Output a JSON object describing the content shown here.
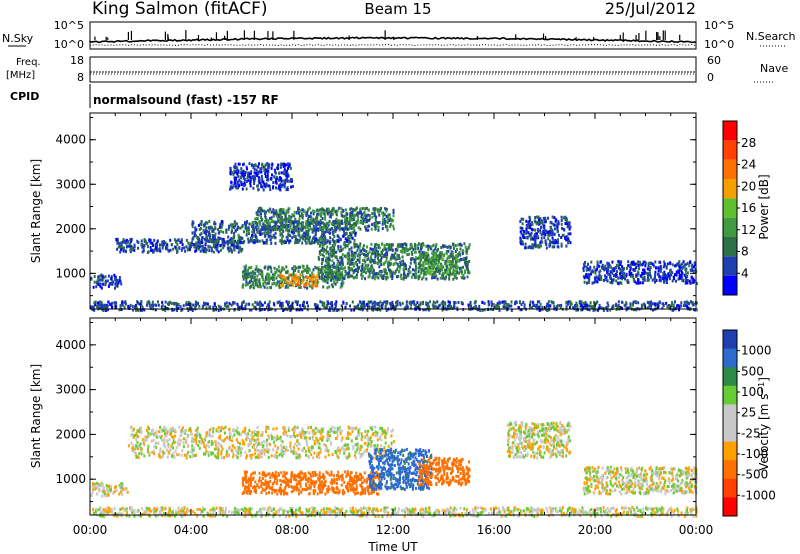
{
  "header": {
    "station": "King Salmon (fitACF)",
    "beam": "Beam 15",
    "date": "25/Jul/2012"
  },
  "status_panel": {
    "noise_left_label": "N.Sky",
    "noise_right_label": "N.Search",
    "noise_ticks": [
      "10^5",
      "10^0"
    ],
    "freq_label_1": "Freq.",
    "freq_label_2": "[MHz]",
    "freq_ticks": [
      "18",
      "8"
    ],
    "nave_label": "Nave",
    "nave_ticks": [
      "60",
      "0"
    ],
    "cpid_label": "CPID",
    "cpid_text": "normalsound (fast) -157 RF"
  },
  "x_axis": {
    "label": "Time UT",
    "ticks": [
      "00:00",
      "04:00",
      "08:00",
      "12:00",
      "16:00",
      "20:00",
      "00:00"
    ]
  },
  "colors": {
    "power_scale": [
      "#0000ff",
      "#1f3fb0",
      "#2d7048",
      "#3f9a40",
      "#5fbf2f",
      "#f5a000",
      "#ff7000",
      "#ff4000",
      "#ff0000"
    ],
    "velocity_scale": [
      "#1f3fb0",
      "#2d6ad0",
      "#2d8a48",
      "#66cc33",
      "#c8c8c8",
      "#c8c8c8",
      "#ffa000",
      "#ff7000",
      "#ff4000",
      "#ff0000"
    ]
  },
  "chart_data": [
    {
      "type": "heatmap",
      "panel": "power",
      "ylabel": "Slant Range [km]",
      "yticks": [
        "1000",
        "2000",
        "3000",
        "4000"
      ],
      "ylim": [
        200,
        4600
      ],
      "xlim_hours": [
        0,
        24
      ],
      "colorbar_label": "Power [dB]",
      "colorbar_ticks": [
        "4",
        "8",
        "12",
        "16",
        "20",
        "24",
        "28"
      ],
      "colorbar_range": [
        0,
        32
      ],
      "regions": [
        {
          "t0": 0.0,
          "t1": 1.2,
          "r0": 700,
          "r1": 1000,
          "v": 5
        },
        {
          "t0": 1.0,
          "t1": 6.0,
          "r0": 1500,
          "r1": 1800,
          "v": 6
        },
        {
          "t0": 4.0,
          "t1": 10.5,
          "r0": 1700,
          "r1": 2200,
          "v": 7
        },
        {
          "t0": 6.5,
          "t1": 12.0,
          "r0": 2000,
          "r1": 2500,
          "v": 9
        },
        {
          "t0": 6.0,
          "t1": 10.0,
          "r0": 700,
          "r1": 1200,
          "v": 10
        },
        {
          "t0": 9.0,
          "t1": 15.0,
          "r0": 900,
          "r1": 1700,
          "v": 9
        },
        {
          "t0": 7.5,
          "t1": 9.0,
          "r0": 750,
          "r1": 1000,
          "v": 21
        },
        {
          "t0": 13.0,
          "t1": 14.5,
          "r0": 1000,
          "r1": 1500,
          "v": 12
        },
        {
          "t0": 5.5,
          "t1": 8.0,
          "r0": 2900,
          "r1": 3500,
          "v": 4
        },
        {
          "t0": 17.0,
          "t1": 19.0,
          "r0": 1600,
          "r1": 2300,
          "v": 5
        },
        {
          "t0": 19.5,
          "t1": 24.0,
          "r0": 800,
          "r1": 1300,
          "v": 5
        },
        {
          "t0": 0.0,
          "t1": 24.0,
          "r0": 200,
          "r1": 400,
          "v": 6
        }
      ]
    },
    {
      "type": "heatmap",
      "panel": "velocity",
      "ylabel": "Slant Range [km]",
      "yticks": [
        "1000",
        "2000",
        "3000",
        "4000"
      ],
      "ylim": [
        200,
        4600
      ],
      "xlim_hours": [
        0,
        24
      ],
      "colorbar_label": "Velocity [m s^-1]",
      "colorbar_ticks": [
        "1000",
        "500",
        "100",
        "25",
        "-25",
        "-100",
        "-500",
        "-1000"
      ],
      "regions": [
        {
          "t0": 0.0,
          "t1": 1.5,
          "r0": 650,
          "r1": 950,
          "v": 0
        },
        {
          "t0": 1.5,
          "t1": 12.0,
          "r0": 1500,
          "r1": 2200,
          "v": 0
        },
        {
          "t0": 6.0,
          "t1": 11.5,
          "r0": 700,
          "r1": 1200,
          "v": -300
        },
        {
          "t0": 11.0,
          "t1": 13.5,
          "r0": 800,
          "r1": 1700,
          "v": 300
        },
        {
          "t0": 13.0,
          "t1": 15.0,
          "r0": 900,
          "r1": 1500,
          "v": -250
        },
        {
          "t0": 16.5,
          "t1": 19.0,
          "r0": 1500,
          "r1": 2300,
          "v": 0
        },
        {
          "t0": 19.5,
          "t1": 24.0,
          "r0": 700,
          "r1": 1300,
          "v": 0
        },
        {
          "t0": 0.0,
          "t1": 24.0,
          "r0": 200,
          "r1": 400,
          "v": 0
        }
      ]
    }
  ]
}
